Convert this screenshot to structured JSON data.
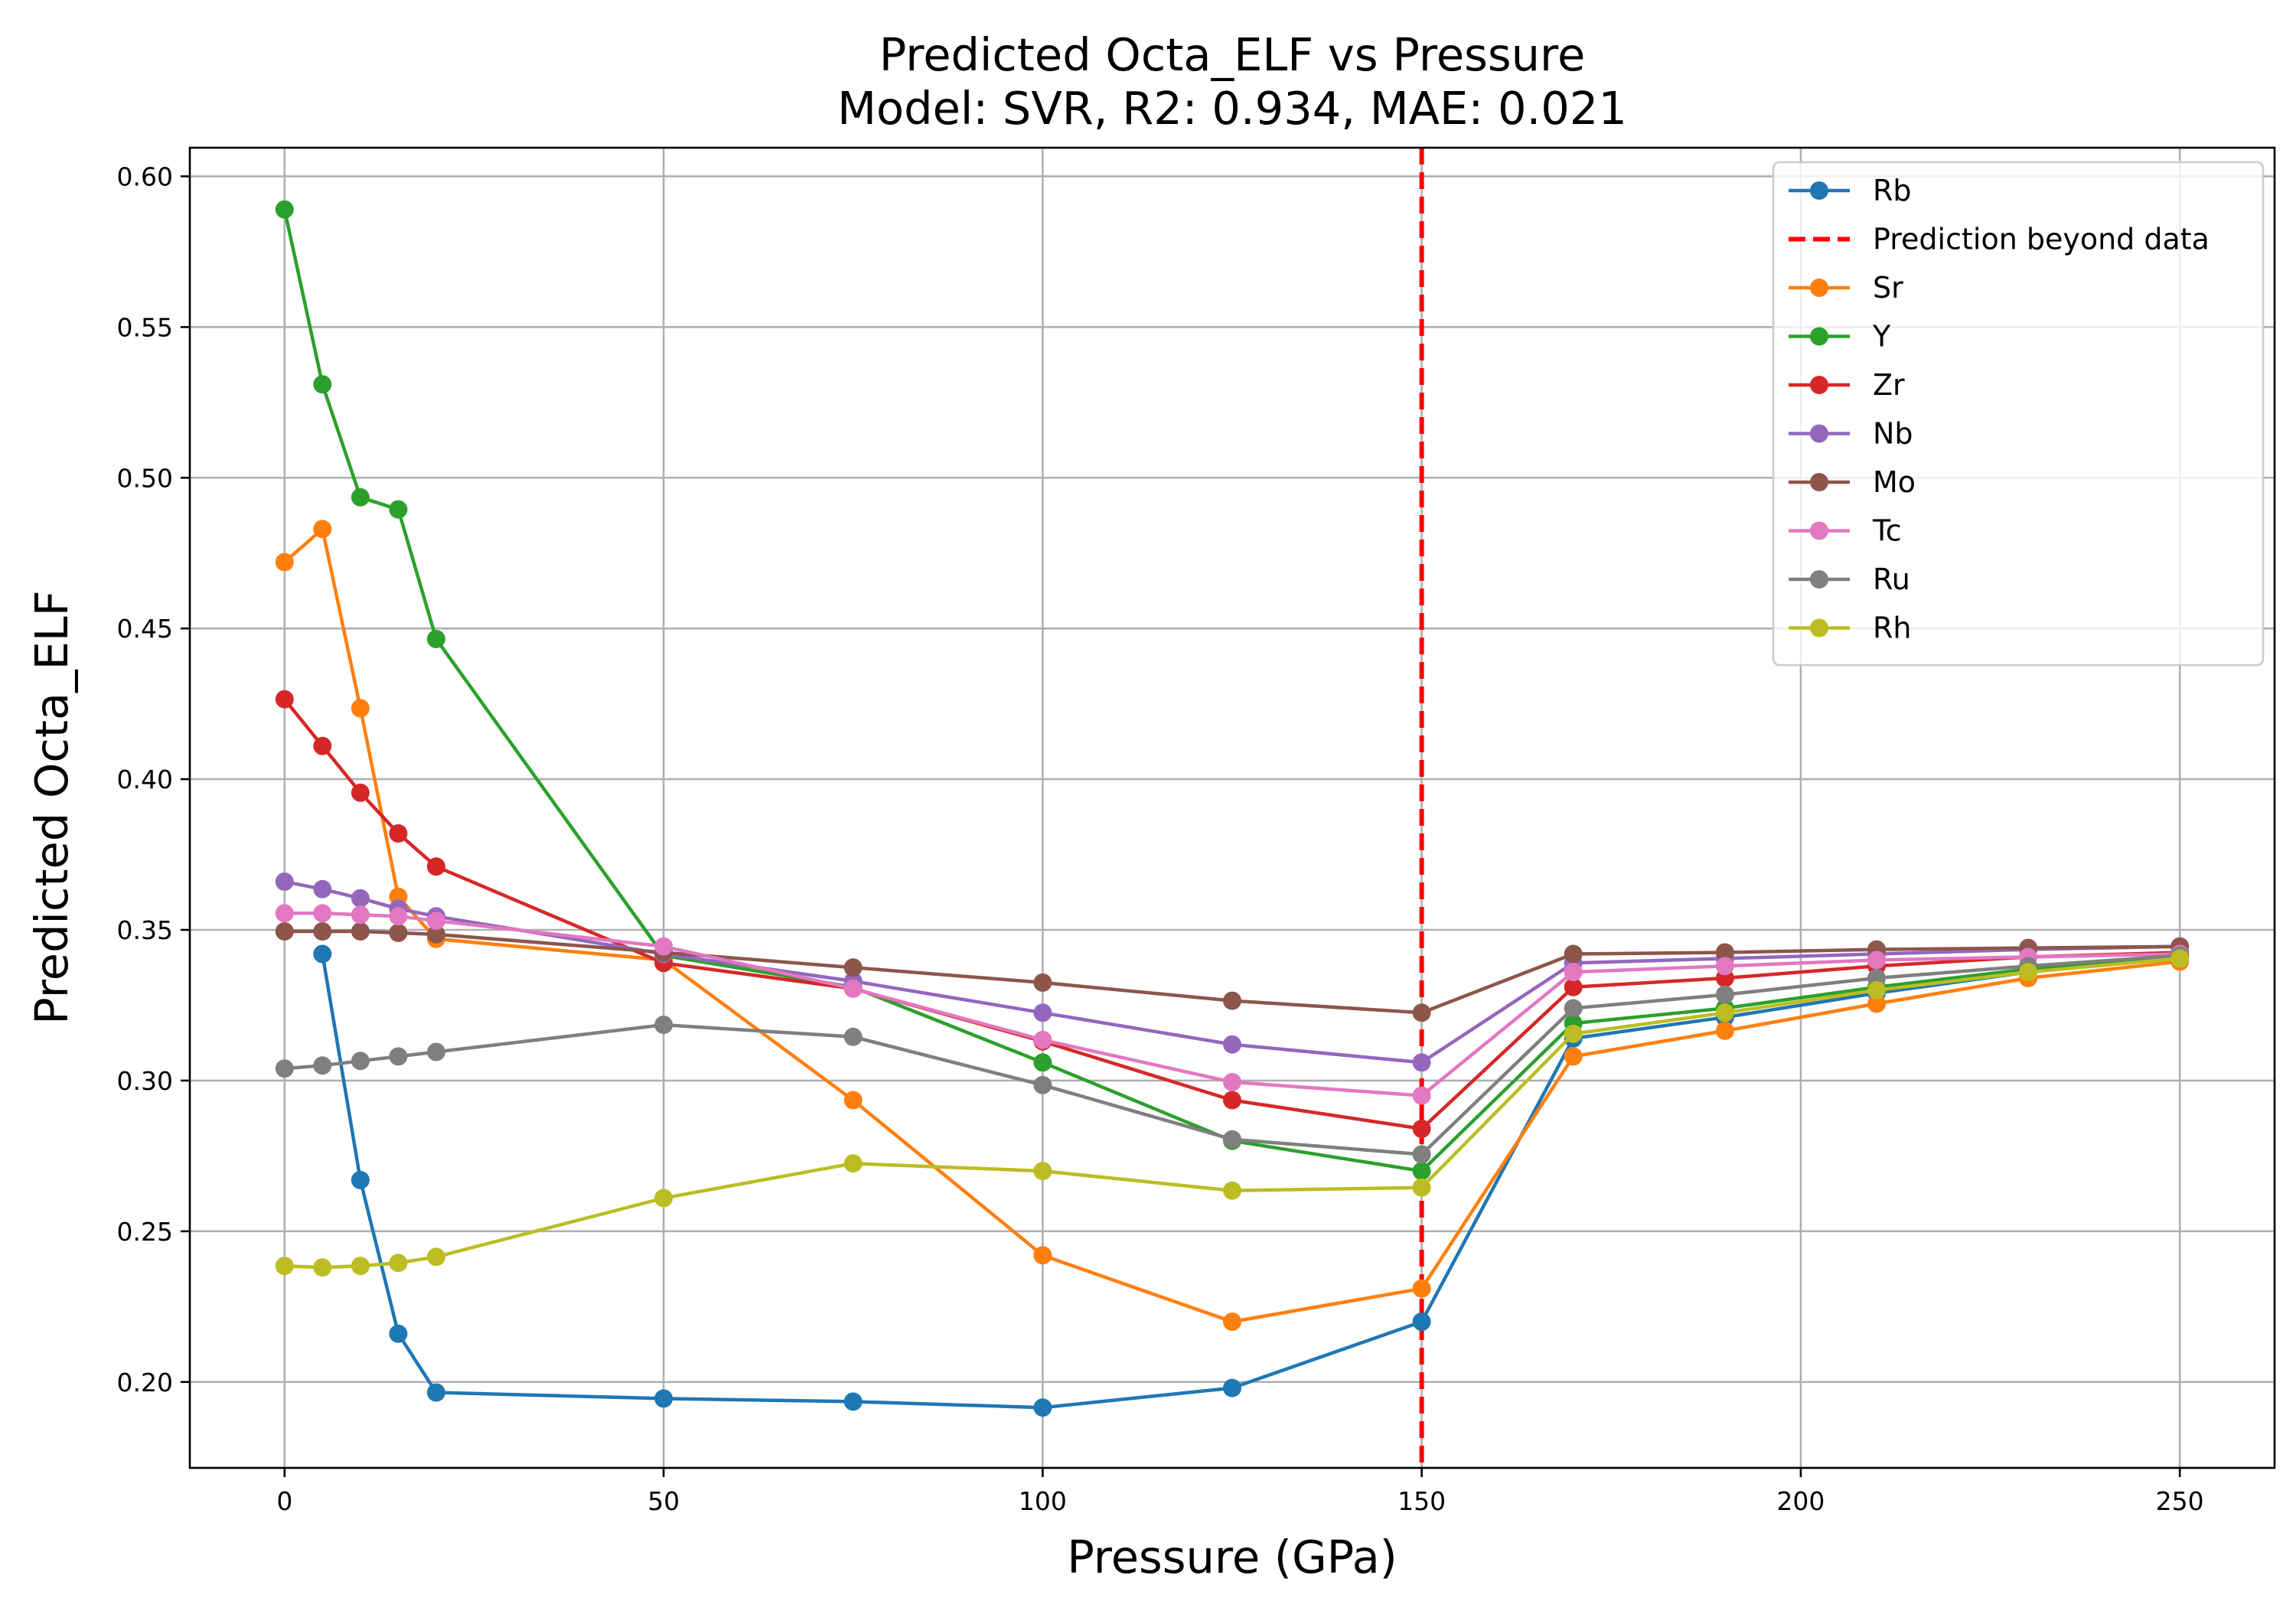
{
  "chart_data": {
    "type": "line",
    "title": "Predicted Octa_ELF vs Pressure",
    "subtitle": "Model: SVR, R2: 0.934, MAE: 0.021",
    "xlabel": "Pressure (GPa)",
    "ylabel": "Predicted Octa_ELF",
    "xlim": [
      -12.5,
      262.5
    ],
    "ylim": [
      0.1715,
      0.6095
    ],
    "xticks": [
      0,
      50,
      100,
      150,
      200,
      250
    ],
    "yticks": [
      0.2,
      0.25,
      0.3,
      0.35,
      0.4,
      0.45,
      0.5,
      0.55,
      0.6
    ],
    "grid": true,
    "legend_position": "top-right",
    "reference_line": {
      "x": 150,
      "label": "Prediction beyond data",
      "color": "#ff0000",
      "style": "dashed"
    },
    "series": [
      {
        "name": "Rb",
        "color": "#1f77b4",
        "x": [
          5,
          10,
          15,
          20,
          50,
          75,
          100,
          125,
          150,
          170,
          190,
          210,
          230,
          250
        ],
        "y": [
          0.342,
          0.267,
          0.216,
          0.1965,
          0.1945,
          0.1935,
          0.1915,
          0.198,
          0.22,
          0.314,
          0.321,
          0.329,
          0.336,
          0.341
        ]
      },
      {
        "name": "Sr",
        "color": "#ff7f0e",
        "x": [
          0,
          5,
          10,
          15,
          20,
          50,
          75,
          100,
          125,
          150,
          170,
          190,
          210,
          230,
          250
        ],
        "y": [
          0.472,
          0.483,
          0.4235,
          0.361,
          0.347,
          0.34,
          0.2935,
          0.242,
          0.22,
          0.231,
          0.308,
          0.3165,
          0.3255,
          0.334,
          0.3395
        ]
      },
      {
        "name": "Y",
        "color": "#2ca02c",
        "x": [
          0,
          5,
          10,
          15,
          20,
          50,
          75,
          100,
          125,
          150,
          170,
          190,
          210,
          230,
          250
        ],
        "y": [
          0.589,
          0.531,
          0.4935,
          0.4895,
          0.4465,
          0.3415,
          0.331,
          0.306,
          0.28,
          0.27,
          0.319,
          0.324,
          0.331,
          0.337,
          0.341
        ]
      },
      {
        "name": "Zr",
        "color": "#d62728",
        "x": [
          0,
          5,
          10,
          15,
          20,
          50,
          75,
          100,
          125,
          150,
          170,
          190,
          210,
          230,
          250
        ],
        "y": [
          0.4265,
          0.411,
          0.3955,
          0.382,
          0.371,
          0.339,
          0.3305,
          0.313,
          0.2935,
          0.284,
          0.331,
          0.334,
          0.338,
          0.341,
          0.3425
        ]
      },
      {
        "name": "Nb",
        "color": "#9467bd",
        "x": [
          0,
          5,
          10,
          15,
          20,
          50,
          75,
          100,
          125,
          150,
          170,
          190,
          210,
          230,
          250
        ],
        "y": [
          0.366,
          0.3635,
          0.3605,
          0.357,
          0.3545,
          0.342,
          0.333,
          0.3225,
          0.312,
          0.306,
          0.339,
          0.3405,
          0.342,
          0.3435,
          0.3445
        ]
      },
      {
        "name": "Mo",
        "color": "#8c564b",
        "x": [
          0,
          5,
          10,
          15,
          20,
          50,
          75,
          100,
          125,
          150,
          170,
          190,
          210,
          230,
          250
        ],
        "y": [
          0.3495,
          0.3495,
          0.3495,
          0.349,
          0.3485,
          0.3425,
          0.3375,
          0.3325,
          0.3265,
          0.3225,
          0.342,
          0.3425,
          0.3435,
          0.344,
          0.3445
        ]
      },
      {
        "name": "Tc",
        "color": "#e377c2",
        "x": [
          0,
          5,
          10,
          15,
          20,
          50,
          75,
          100,
          125,
          150,
          170,
          190,
          210,
          230,
          250
        ],
        "y": [
          0.3555,
          0.3555,
          0.355,
          0.3545,
          0.353,
          0.3445,
          0.3305,
          0.3135,
          0.2995,
          0.295,
          0.336,
          0.338,
          0.34,
          0.341,
          0.342
        ]
      },
      {
        "name": "Ru",
        "color": "#7f7f7f",
        "x": [
          0,
          5,
          10,
          15,
          20,
          50,
          75,
          100,
          125,
          150,
          170,
          190,
          210,
          230,
          250
        ],
        "y": [
          0.304,
          0.305,
          0.3065,
          0.308,
          0.3095,
          0.3185,
          0.3145,
          0.2985,
          0.2805,
          0.2755,
          0.324,
          0.3285,
          0.334,
          0.338,
          0.3415
        ]
      },
      {
        "name": "Rh",
        "color": "#bcbd22",
        "x": [
          0,
          5,
          10,
          15,
          20,
          50,
          75,
          100,
          125,
          150,
          170,
          190,
          210,
          230,
          250
        ],
        "y": [
          0.2385,
          0.238,
          0.2385,
          0.2395,
          0.2415,
          0.261,
          0.2725,
          0.27,
          0.2635,
          0.2645,
          0.3155,
          0.3225,
          0.33,
          0.336,
          0.3405
        ]
      }
    ]
  }
}
